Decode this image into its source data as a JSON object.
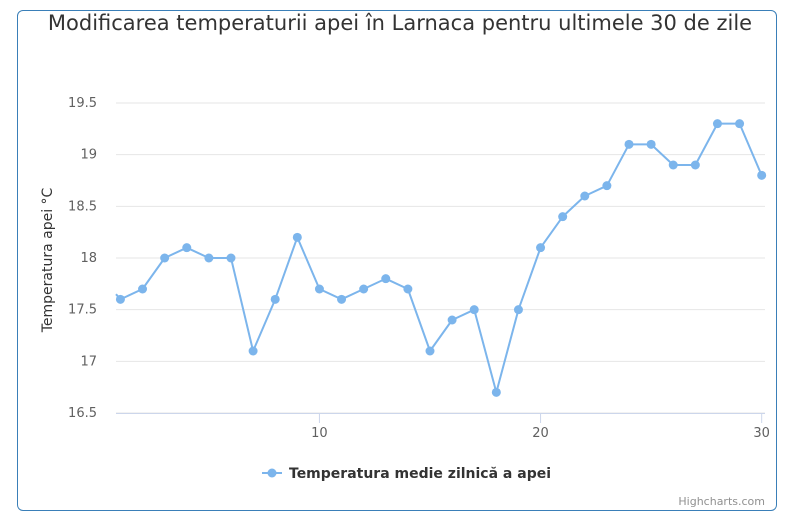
{
  "chart_data": {
    "type": "line",
    "title": "Modificarea temperaturii apei în Larnaca pentru ultimele 30 de zile",
    "ylabel": "Temperatura apei °C",
    "xlabel": "",
    "ylim": [
      16.5,
      19.5
    ],
    "xlim": [
      1,
      30
    ],
    "y_ticks": [
      "16.5",
      "17",
      "17.5",
      "18",
      "18.5",
      "19",
      "19.5"
    ],
    "x_ticks": [
      "10",
      "20",
      "30"
    ],
    "grid": true,
    "legend_placement": "bottom-center",
    "series": [
      {
        "name": "Temperatura medie zilnică a apei",
        "color": "#7cb5ec",
        "x": [
          1,
          2,
          3,
          4,
          5,
          6,
          7,
          8,
          9,
          10,
          11,
          12,
          13,
          14,
          15,
          16,
          17,
          18,
          19,
          20,
          21,
          22,
          23,
          24,
          25,
          26,
          27,
          28,
          29,
          30
        ],
        "values": [
          17.6,
          17.7,
          18.0,
          18.1,
          18.0,
          18.0,
          17.1,
          17.6,
          18.2,
          17.7,
          17.6,
          17.7,
          17.8,
          17.7,
          17.1,
          17.4,
          17.5,
          16.7,
          17.5,
          18.1,
          18.4,
          18.6,
          18.7,
          19.1,
          19.1,
          18.9,
          18.9,
          19.3,
          19.3,
          18.8
        ]
      }
    ]
  },
  "credits": "Highcharts.com"
}
